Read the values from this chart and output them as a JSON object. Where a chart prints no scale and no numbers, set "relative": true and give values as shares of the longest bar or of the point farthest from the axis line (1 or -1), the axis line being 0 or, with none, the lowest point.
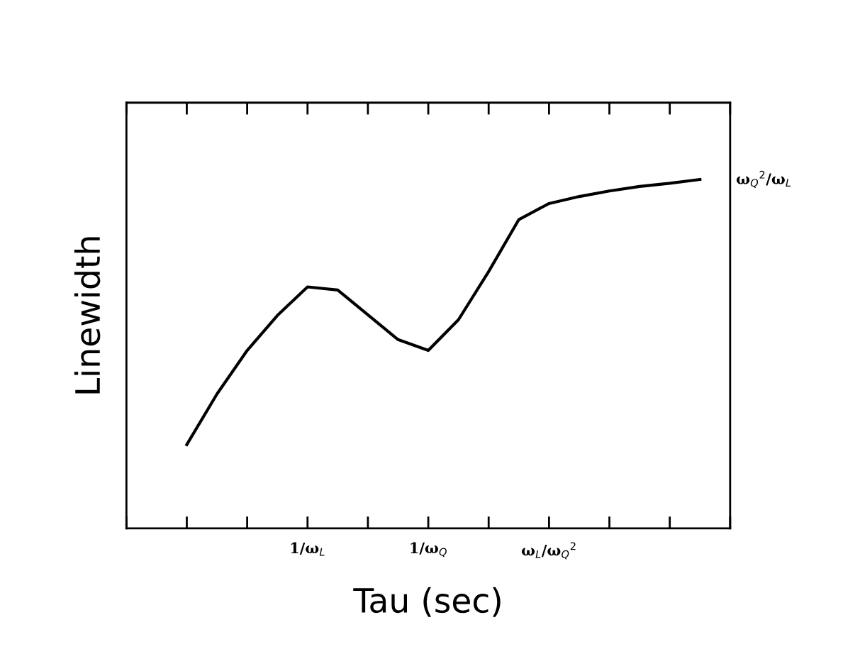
{
  "chart_data": {
    "type": "line",
    "relative": true,
    "xlabel": "Tau (sec)",
    "ylabel": "Linewidth",
    "categories": [
      null,
      null,
      null,
      null,
      null,
      null,
      "1/ω$_{L}$",
      null,
      null,
      null,
      "1/ω$_{Q}$",
      null,
      null,
      null,
      "ω$_{L}$/ω$_{Q}$$^{2}$",
      null,
      null,
      null,
      null,
      null,
      null
    ],
    "grid": false,
    "marker": "none",
    "line_style": "solid",
    "series": [
      {
        "color": "#000000",
        "values": [
          null,
          null,
          0.24,
          0.385,
          0.51,
          0.61,
          0.692,
          0.683,
          0.612,
          0.541,
          0.51,
          0.598,
          0.736,
          0.885,
          0.931,
          0.951,
          0.967,
          0.98,
          0.989,
          1.0,
          null
        ]
      }
    ],
    "annotations": [
      "ω$_{Q}$$^{2}$/ω$_{L}$"
    ]
  }
}
